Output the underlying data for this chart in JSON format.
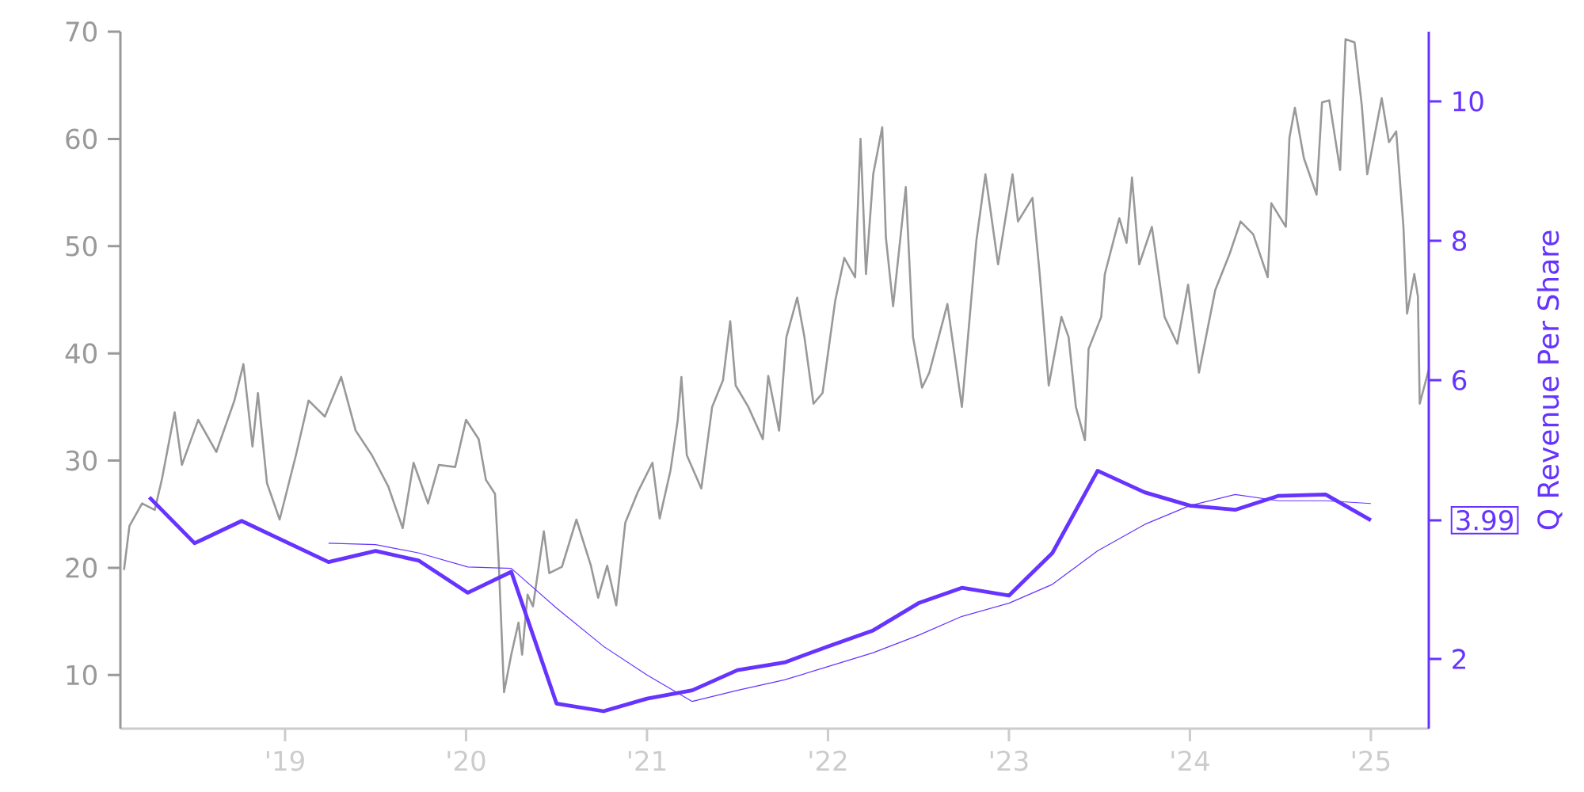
{
  "chart_data": {
    "type": "line",
    "y2label": "Q Revenue Per Share",
    "xlim": [
      2018.09,
      2025.32
    ],
    "xticks": [
      {
        "value": 2019,
        "label": "'19"
      },
      {
        "value": 2020,
        "label": "'20"
      },
      {
        "value": 2021,
        "label": "'21"
      },
      {
        "value": 2022,
        "label": "'22"
      },
      {
        "value": 2023,
        "label": "'23"
      },
      {
        "value": 2024,
        "label": "'24"
      },
      {
        "value": 2025,
        "label": "'25"
      }
    ],
    "ylim": [
      5,
      70
    ],
    "yticks": [
      10,
      20,
      30,
      40,
      50,
      60,
      70
    ],
    "y2lim": [
      1,
      11
    ],
    "y2ticks": [
      2,
      {
        "value": 3.99,
        "label": "3.99"
      },
      6,
      8,
      10
    ],
    "series": [
      {
        "color": "#999999",
        "x": [
          2018.11,
          2018.14,
          2018.21,
          2018.28,
          2018.32,
          2018.39,
          2018.43,
          2018.52,
          2018.62,
          2018.72,
          2018.77,
          2018.82,
          2018.85,
          2018.9,
          2018.97,
          2019.06,
          2019.13,
          2019.22,
          2019.31,
          2019.39,
          2019.48,
          2019.57,
          2019.65,
          2019.71,
          2019.79,
          2019.85,
          2019.94,
          2020.0,
          2020.07,
          2020.11,
          2020.16,
          2020.18,
          2020.21,
          2020.25,
          2020.29,
          2020.31,
          2020.34,
          2020.37,
          2020.43,
          2020.46,
          2020.53,
          2020.61,
          2020.69,
          2020.73,
          2020.78,
          2020.83,
          2020.88,
          2020.95,
          2021.03,
          2021.07,
          2021.13,
          2021.17,
          2021.19,
          2021.22,
          2021.3,
          2021.36,
          2021.42,
          2021.46,
          2021.49,
          2021.56,
          2021.64,
          2021.67,
          2021.73,
          2021.77,
          2021.83,
          2021.87,
          2021.92,
          2021.97,
          2022.04,
          2022.09,
          2022.15,
          2022.18,
          2022.21,
          2022.25,
          2022.3,
          2022.32,
          2022.36,
          2022.43,
          2022.47,
          2022.52,
          2022.56,
          2022.66,
          2022.74,
          2022.82,
          2022.87,
          2022.94,
          2023.02,
          2023.05,
          2023.13,
          2023.17,
          2023.22,
          2023.29,
          2023.33,
          2023.37,
          2023.42,
          2023.44,
          2023.51,
          2023.53,
          2023.61,
          2023.65,
          2023.68,
          2023.72,
          2023.79,
          2023.86,
          2023.93,
          2023.99,
          2024.05,
          2024.14,
          2024.22,
          2024.28,
          2024.35,
          2024.43,
          2024.45,
          2024.53,
          2024.55,
          2024.58,
          2024.63,
          2024.7,
          2024.73,
          2024.77,
          2024.83,
          2024.86,
          2024.91,
          2024.95,
          2024.98,
          2025.06,
          2025.1,
          2025.14,
          2025.18,
          2025.2,
          2025.24,
          2025.26,
          2025.27,
          2025.32
        ],
        "values": [
          19.8,
          23.9,
          26.0,
          25.4,
          28.3,
          34.5,
          29.6,
          33.8,
          30.8,
          35.6,
          39.0,
          31.3,
          36.3,
          27.9,
          24.5,
          30.5,
          35.6,
          34.1,
          37.8,
          32.8,
          30.5,
          27.6,
          23.7,
          29.8,
          26.0,
          29.6,
          29.4,
          33.8,
          32.0,
          28.2,
          26.9,
          20.8,
          8.4,
          11.9,
          14.9,
          11.9,
          17.5,
          16.4,
          23.4,
          19.5,
          20.1,
          24.5,
          20.2,
          17.2,
          20.2,
          16.5,
          24.2,
          27.1,
          29.8,
          24.6,
          29.1,
          33.8,
          37.8,
          30.5,
          27.4,
          35.0,
          37.5,
          43.0,
          37.0,
          35.0,
          32.0,
          37.9,
          32.8,
          41.5,
          45.2,
          41.5,
          35.3,
          36.3,
          44.9,
          48.9,
          47.1,
          60.0,
          47.4,
          56.7,
          61.1,
          50.8,
          44.4,
          55.5,
          41.5,
          36.8,
          38.2,
          44.6,
          35.0,
          50.5,
          56.7,
          48.3,
          56.7,
          52.3,
          54.5,
          47.4,
          37.0,
          43.4,
          41.5,
          35.0,
          31.9,
          40.4,
          43.4,
          47.4,
          52.6,
          50.3,
          56.4,
          48.3,
          51.8,
          43.4,
          40.9,
          46.4,
          38.2,
          45.9,
          49.3,
          52.3,
          51.1,
          47.1,
          54.0,
          51.8,
          60.1,
          62.9,
          58.2,
          54.8,
          63.4,
          63.6,
          57.1,
          69.3,
          69.0,
          63.1,
          56.7,
          63.8,
          59.7,
          60.7,
          51.8,
          43.7,
          47.4,
          45.3,
          35.3,
          38.5
        ]
      },
      {
        "color": "#6633ff",
        "axis": "y2",
        "x": [
          2018.25,
          2018.5,
          2018.76,
          2019.24,
          2019.5,
          2019.74,
          2020.01,
          2020.25,
          2020.5,
          2020.76,
          2021.0,
          2021.25,
          2021.5,
          2021.76,
          2022.0,
          2022.25,
          2022.5,
          2022.74,
          2023.0,
          2023.24,
          2023.49,
          2023.75,
          2024.0,
          2024.25,
          2024.49,
          2024.75,
          2025.0
        ],
        "values": [
          4.32,
          3.66,
          3.98,
          3.39,
          3.55,
          3.41,
          2.95,
          3.25,
          1.36,
          1.25,
          1.43,
          1.55,
          1.84,
          1.95,
          2.18,
          2.41,
          2.8,
          3.02,
          2.91,
          3.52,
          4.7,
          4.39,
          4.2,
          4.14,
          4.34,
          4.36,
          3.99
        ]
      },
      {
        "color": "#6633ff",
        "axis": "y2",
        "x": [
          2019.24,
          2019.5,
          2019.74,
          2020.01,
          2020.25,
          2020.5,
          2020.76,
          2021.0,
          2021.25,
          2021.5,
          2021.76,
          2022.0,
          2022.25,
          2022.5,
          2022.74,
          2023.0,
          2023.24,
          2023.49,
          2023.75,
          2024.0,
          2024.25,
          2024.49,
          2024.75,
          2025.0
        ],
        "values": [
          3.66,
          3.64,
          3.52,
          3.32,
          3.3,
          2.73,
          2.18,
          1.77,
          1.39,
          1.55,
          1.7,
          1.89,
          2.09,
          2.34,
          2.61,
          2.8,
          3.07,
          3.55,
          3.93,
          4.2,
          4.36,
          4.27,
          4.27,
          4.23
        ]
      }
    ]
  }
}
